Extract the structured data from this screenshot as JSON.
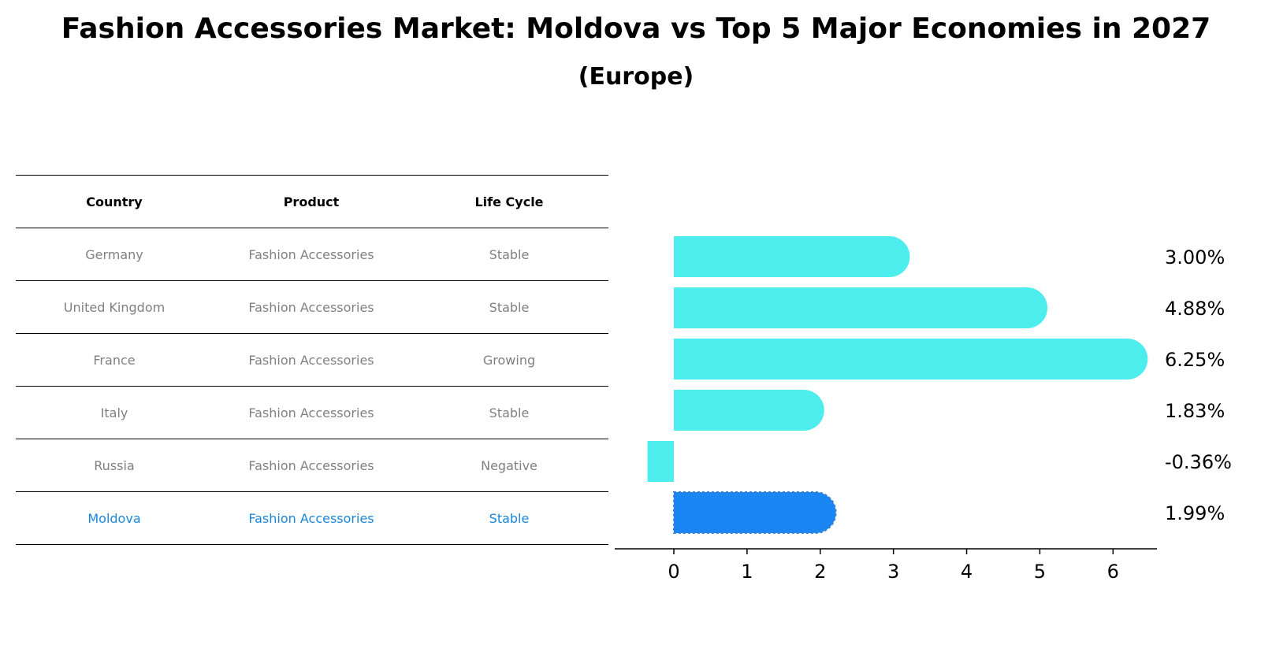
{
  "chart_data": {
    "type": "bar",
    "orientation": "horizontal",
    "title": "Fashion Accessories Market: Moldova vs Top 5 Major Economies in 2027",
    "subtitle": "(Europe)",
    "categories": [
      "Germany",
      "United Kingdom",
      "France",
      "Italy",
      "Russia",
      "Moldova"
    ],
    "values": [
      3.0,
      4.88,
      6.25,
      1.83,
      -0.36,
      1.99
    ],
    "value_labels": [
      "3.00%",
      "4.88%",
      "6.25%",
      "1.83%",
      "-0.36%",
      "1.99%"
    ],
    "xlim": [
      -0.7,
      6.6
    ],
    "xticks": [
      0,
      1,
      2,
      3,
      4,
      5,
      6
    ],
    "xtick_labels": [
      "0",
      "1",
      "2",
      "3",
      "4",
      "5",
      "6"
    ],
    "highlight_index": 5,
    "colors": {
      "default": "#4deded",
      "highlight": "#1a86f4",
      "highlight_text": "#1a86d8",
      "muted_text": "#808080"
    },
    "grid": false,
    "table": {
      "columns": [
        "Country",
        "Product",
        "Life Cycle"
      ],
      "rows": [
        [
          "Germany",
          "Fashion Accessories",
          "Stable"
        ],
        [
          "United Kingdom",
          "Fashion Accessories",
          "Stable"
        ],
        [
          "France",
          "Fashion Accessories",
          "Growing"
        ],
        [
          "Italy",
          "Fashion Accessories",
          "Stable"
        ],
        [
          "Russia",
          "Fashion Accessories",
          "Negative"
        ],
        [
          "Moldova",
          "Fashion Accessories",
          "Stable"
        ]
      ]
    }
  }
}
